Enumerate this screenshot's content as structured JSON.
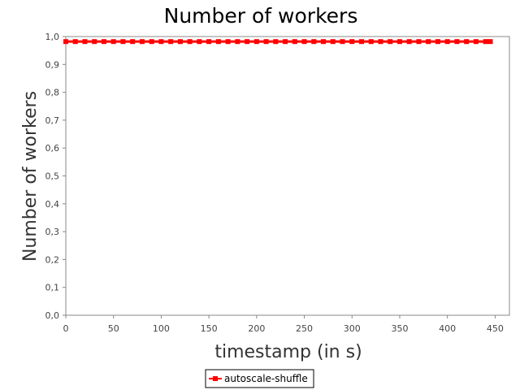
{
  "chart_data": {
    "type": "line",
    "title": "Number of workers",
    "xlabel": "timestamp (in s)",
    "ylabel": "Number of workers",
    "xlim": [
      0,
      465
    ],
    "ylim": [
      0,
      1.0
    ],
    "x_ticks": [
      "0",
      "50",
      "100",
      "150",
      "200",
      "250",
      "300",
      "350",
      "400",
      "450"
    ],
    "y_ticks": [
      "0,0",
      "0,1",
      "0,2",
      "0,3",
      "0,4",
      "0,5",
      "0,6",
      "0,7",
      "0,8",
      "0,9",
      "1,0"
    ],
    "grid": false,
    "legend_position": "bottom",
    "series": [
      {
        "name": "autoscale-shuffle",
        "color": "#ff0000",
        "marker": "square",
        "x": [
          0,
          10,
          20,
          30,
          40,
          50,
          60,
          70,
          80,
          90,
          100,
          110,
          120,
          130,
          140,
          150,
          160,
          170,
          180,
          190,
          200,
          210,
          220,
          230,
          240,
          250,
          260,
          270,
          280,
          290,
          300,
          310,
          320,
          330,
          340,
          350,
          360,
          370,
          380,
          390,
          400,
          410,
          420,
          430,
          440,
          445
        ],
        "values": [
          1,
          1,
          1,
          1,
          1,
          1,
          1,
          1,
          1,
          1,
          1,
          1,
          1,
          1,
          1,
          1,
          1,
          1,
          1,
          1,
          1,
          1,
          1,
          1,
          1,
          1,
          1,
          1,
          1,
          1,
          1,
          1,
          1,
          1,
          1,
          1,
          1,
          1,
          1,
          1,
          1,
          1,
          1,
          1,
          1,
          1
        ]
      }
    ]
  }
}
